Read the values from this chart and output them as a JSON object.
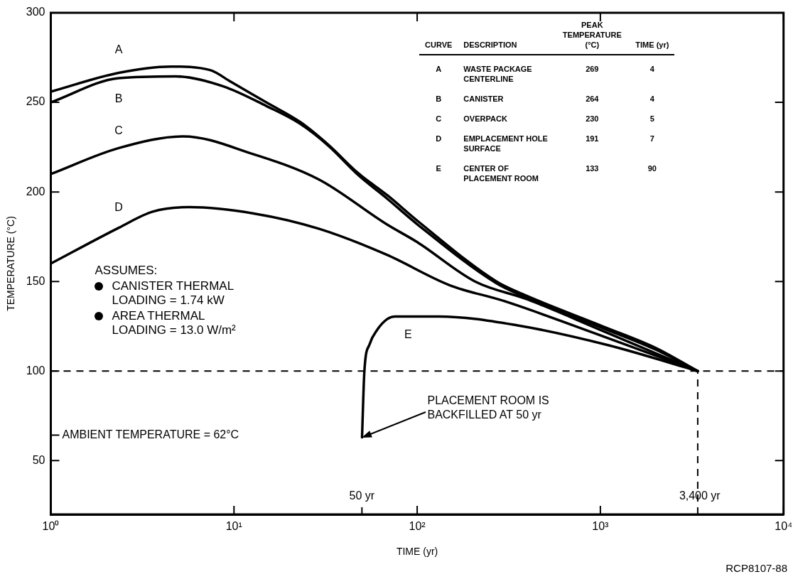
{
  "chart_data": {
    "type": "line",
    "xlabel": "TIME (yr)",
    "ylabel": "TEMPERATURE (°C)",
    "log": "x",
    "grid": false,
    "legend": false,
    "marker": "none",
    "xlim": [
      1,
      10000
    ],
    "ylim": [
      20,
      300
    ],
    "xticks": [
      {
        "value": 1,
        "label": "10⁰"
      },
      {
        "value": 10,
        "label": "10¹"
      },
      {
        "value": 100,
        "label": "10²"
      },
      {
        "value": 1000,
        "label": "10³"
      },
      {
        "value": 10000,
        "label": "10⁴"
      }
    ],
    "yticks": [
      50,
      100,
      150,
      200,
      250,
      300
    ],
    "series": [
      {
        "name": "A",
        "color": "#000000",
        "x": [
          1,
          2.35,
          4.5,
          7.4,
          9.6,
          15,
          23,
          33,
          47,
          69,
          100,
          271,
          376,
          1030,
          2000,
          3400
        ],
        "values": [
          256,
          266.5,
          270,
          268,
          261.5,
          250,
          239,
          226,
          211,
          198,
          184,
          150,
          143,
          125,
          113,
          100
        ]
      },
      {
        "name": "B",
        "color": "#000000",
        "x": [
          1,
          2.35,
          4.8,
          8.7,
          15,
          23,
          33,
          47,
          69,
          100,
          271,
          376,
          1030,
          2000,
          3400
        ],
        "values": [
          250,
          263.5,
          264.5,
          259,
          248,
          238,
          225.5,
          210,
          196,
          182,
          149,
          142,
          124,
          112,
          100
        ]
      },
      {
        "name": "C",
        "color": "#000000",
        "x": [
          1,
          2.35,
          5.3,
          12.8,
          29,
          68,
          100,
          207,
          400,
          1000,
          3400
        ],
        "values": [
          210,
          224.5,
          231,
          221,
          207,
          182,
          172,
          150,
          140,
          123,
          100
        ]
      },
      {
        "name": "D",
        "color": "#000000",
        "x": [
          1,
          2.35,
          3.6,
          5.7,
          12.8,
          29,
          68,
          150,
          300,
          938,
          3400
        ],
        "values": [
          160,
          180,
          189,
          191.5,
          188,
          179.5,
          165,
          148,
          139,
          121,
          100
        ]
      },
      {
        "name": "E",
        "color": "#000000",
        "x": [
          50,
          51.5,
          55,
          60.5,
          68.6,
          76,
          131,
          353,
          1100,
          3400
        ],
        "values": [
          63,
          100,
          115,
          123,
          129,
          130.5,
          130.5,
          125.5,
          114.5,
          100
        ]
      }
    ],
    "ref_lines": [
      {
        "axis": "y",
        "value": 100,
        "line_style": "dashed"
      },
      {
        "axis": "x",
        "value": 3400,
        "label": "3,400 yr",
        "line_style": "dashed"
      }
    ],
    "annotations": [
      "CURVE",
      "DESCRIPTION",
      "PEAK TEMPERATURE (°C)",
      "TIME (yr)",
      "A",
      "WASTE PACKAGE CENTERLINE",
      "269",
      "4",
      "B",
      "CANISTER",
      "264",
      "4",
      "C",
      "OVERPACK",
      "230",
      "5",
      "D",
      "EMPLACEMENT HOLE SURFACE",
      "191",
      "7",
      "E",
      "CENTER OF PLACEMENT ROOM",
      "133",
      "90",
      "ASSUMES:",
      "CANISTER THERMAL LOADING = 1.74 kW",
      "AREA THERMAL LOADING = 13.0 W/m²",
      "AMBIENT TEMPERATURE = 62°C",
      "PLACEMENT ROOM IS BACKFILLED AT 50 yr",
      "50 yr",
      "RCP8107-88"
    ]
  }
}
